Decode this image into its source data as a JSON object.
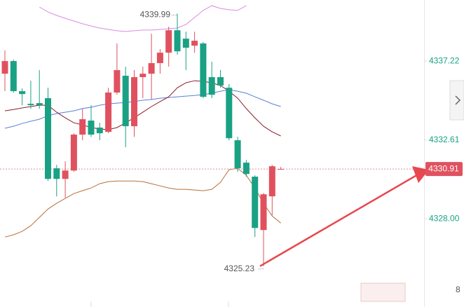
{
  "chart_data": {
    "type": "candlestick",
    "open": [
      4336.48,
      4337.22,
      4335.46,
      4334.72,
      4334.76,
      4335.05,
      4330.95,
      4330.33,
      4330.82,
      4332.92,
      4333.74,
      4333.33,
      4333.08,
      4335.38,
      4336.36,
      4333.41,
      4336.28,
      4336.48,
      4337.1,
      4337.71,
      4339.02,
      4338.53,
      4338.12,
      4338.25,
      4336.28,
      4336.28,
      4335.66,
      4332.59,
      4331.28,
      4330.46,
      4327.34,
      4329.31,
      4330.87
    ],
    "high": [
      4337.84,
      4337.3,
      4335.62,
      4336.07,
      4336.69,
      4335.66,
      4331.15,
      4331.36,
      4333.0,
      4334.43,
      4334.64,
      4333.61,
      4335.66,
      4338.25,
      4336.89,
      4336.69,
      4336.89,
      4338.82,
      4337.92,
      4339.23,
      4339.99,
      4338.94,
      4338.94,
      4338.33,
      4337.18,
      4336.69,
      4335.87,
      4332.79,
      4331.44,
      4330.54,
      4329.51,
      4331.15,
      4331.03
    ],
    "low": [
      4335.46,
      4335.38,
      4334.64,
      4334.43,
      4334.43,
      4330.21,
      4329.31,
      4329.23,
      4330.74,
      4332.59,
      4332.79,
      4332.59,
      4333.0,
      4335.25,
      4332.18,
      4332.79,
      4335.05,
      4334.97,
      4336.48,
      4336.89,
      4337.59,
      4336.69,
      4337.71,
      4335.05,
      4335.05,
      4335.66,
      4332.59,
      4330.74,
      4330.46,
      4326.93,
      4325.23,
      4328.2,
      4330.87
    ],
    "close": [
      4337.22,
      4335.46,
      4335.29,
      4334.64,
      4334.64,
      4330.33,
      4330.33,
      4330.82,
      4332.92,
      4333.82,
      4332.92,
      4333.0,
      4335.38,
      4336.69,
      4333.41,
      4336.28,
      4336.48,
      4337.1,
      4337.71,
      4339.02,
      4337.79,
      4338.0,
      4338.41,
      4335.13,
      4335.25,
      4335.79,
      4332.71,
      4330.95,
      4330.62,
      4327.46,
      4329.43,
      4331.07,
      4330.91
    ],
    "up_color": "#e0515f",
    "down_color": "#1aa184",
    "lines": [
      {
        "color": "#d98be0",
        "values": [
          null,
          null,
          null,
          null,
          4340.38,
          4340.09,
          4339.89,
          4339.72,
          4339.56,
          4339.4,
          4339.27,
          4339.15,
          4339.07,
          4338.99,
          4338.95,
          4338.99,
          4339.03,
          4339.03,
          4339.07,
          4339.11,
          4339.15,
          4339.36,
          4339.77,
          4340.18,
          4340.46,
          4340.3,
          4340.22,
          4340.18,
          4340.46,
          null,
          null,
          null,
          null
        ]
      },
      {
        "color": "#5b7fd8",
        "values": [
          4333.29,
          4333.41,
          4333.57,
          4333.7,
          4333.82,
          4334.03,
          4334.15,
          4334.23,
          4334.31,
          4334.44,
          4334.52,
          4334.64,
          4334.72,
          4334.76,
          4334.8,
          4334.85,
          4334.93,
          4334.97,
          4335.05,
          4335.09,
          4335.13,
          4335.17,
          4335.21,
          4335.26,
          4335.34,
          4335.46,
          4335.54,
          4335.46,
          4335.34,
          4335.13,
          4334.93,
          4334.72,
          4334.56
        ]
      },
      {
        "color": "#8b1e2a",
        "values": [
          4334.31,
          4334.39,
          4334.48,
          4334.56,
          4334.64,
          4334.64,
          4334.23,
          4333.9,
          4333.61,
          4333.49,
          4333.33,
          4333.25,
          4333.21,
          4333.33,
          4333.61,
          4333.9,
          4334.23,
          4334.56,
          4334.85,
          4335.13,
          4335.66,
          4335.95,
          4336.07,
          4336.03,
          4335.95,
          4335.79,
          4335.46,
          4335.05,
          4334.44,
          4333.9,
          4333.41,
          4333.08,
          4332.84
        ]
      },
      {
        "color": "#b8703a",
        "values": [
          4326.93,
          4327.06,
          4327.26,
          4327.59,
          4328.08,
          4328.57,
          4328.9,
          4329.19,
          4329.47,
          4329.64,
          4329.8,
          4330.05,
          4330.17,
          4330.21,
          4330.21,
          4330.21,
          4330.17,
          4330.05,
          4329.92,
          4329.8,
          4329.72,
          4329.72,
          4329.68,
          4329.64,
          4329.72,
          4330.13,
          4330.87,
          4330.95,
          4330.54,
          4329.8,
          4328.9,
          4328.16,
          4327.75
        ]
      }
    ],
    "ylim": [
      4322.84,
      4340.79
    ],
    "yticks": [
      4337.22,
      4332.61,
      {
        "value": 4328,
        "label": "4328.00"
      }
    ],
    "tick_color": "#1aa184"
  },
  "overlay": {
    "corner_label": "8"
  }
}
